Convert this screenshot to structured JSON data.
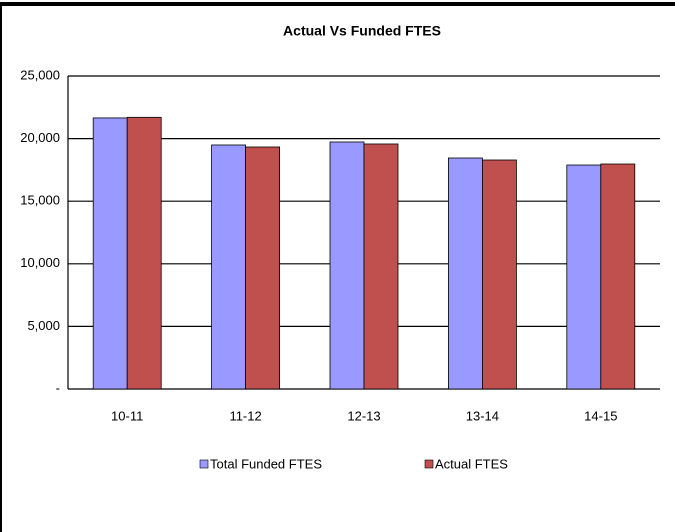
{
  "chart_data": {
    "type": "bar",
    "title": "Actual Vs Funded FTES",
    "categories": [
      "10-11",
      "11-12",
      "12-13",
      "13-14",
      "14-15"
    ],
    "series": [
      {
        "name": "Total Funded FTES",
        "color": "#9999ff",
        "values": [
          21650,
          19490,
          19730,
          18450,
          17890
        ]
      },
      {
        "name": "Actual FTES",
        "color": "#c0504d",
        "values": [
          21700,
          19330,
          19570,
          18290,
          17970
        ]
      }
    ],
    "ylim": [
      0,
      25000
    ],
    "yticks": [
      {
        "value": 0,
        "label": "-"
      },
      {
        "value": 5000,
        "label": "5,000"
      },
      {
        "value": 10000,
        "label": "10,000"
      },
      {
        "value": 15000,
        "label": "15,000"
      },
      {
        "value": 20000,
        "label": "20,000"
      },
      {
        "value": 25000,
        "label": "25,000"
      }
    ],
    "grid": true,
    "legend": "bottom"
  }
}
